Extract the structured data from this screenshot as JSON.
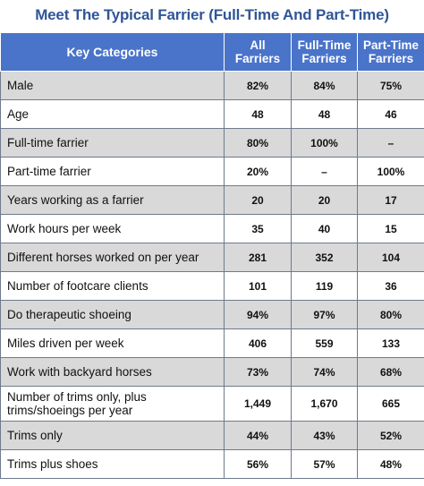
{
  "title": "Meet The Typical Farrier (Full-Time And Part-Time)",
  "chart_data": {
    "type": "table",
    "columns": [
      {
        "line1": "Key Categories",
        "line2": ""
      },
      {
        "line1": "All",
        "line2": "Farriers"
      },
      {
        "line1": "Full-Time",
        "line2": "Farriers"
      },
      {
        "line1": "Part-Time",
        "line2": "Farriers"
      }
    ],
    "rows": [
      {
        "label": "Male",
        "label2": "",
        "all": "82%",
        "full": "84%",
        "part": "75%"
      },
      {
        "label": "Age",
        "label2": "",
        "all": "48",
        "full": "48",
        "part": "46"
      },
      {
        "label": "Full-time farrier",
        "label2": "",
        "all": "80%",
        "full": "100%",
        "part": "–"
      },
      {
        "label": "Part-time farrier",
        "label2": "",
        "all": "20%",
        "full": "–",
        "part": "100%"
      },
      {
        "label": "Years working as a farrier",
        "label2": "",
        "all": "20",
        "full": "20",
        "part": "17"
      },
      {
        "label": "Work hours per week",
        "label2": "",
        "all": "35",
        "full": "40",
        "part": "15"
      },
      {
        "label": "Different horses worked on per year",
        "label2": "",
        "all": "281",
        "full": "352",
        "part": "104"
      },
      {
        "label": "Number of footcare clients",
        "label2": "",
        "all": "101",
        "full": "119",
        "part": "36"
      },
      {
        "label": "Do therapeutic shoeing",
        "label2": "",
        "all": "94%",
        "full": "97%",
        "part": "80%"
      },
      {
        "label": "Miles driven per week",
        "label2": "",
        "all": "406",
        "full": "559",
        "part": "133"
      },
      {
        "label": "Work with backyard horses",
        "label2": "",
        "all": "73%",
        "full": "74%",
        "part": "68%"
      },
      {
        "label": "Number of trims only, plus",
        "label2": "trims/shoeings per year",
        "all": "1,449",
        "full": "1,670",
        "part": "665"
      },
      {
        "label": "Trims only",
        "label2": "",
        "all": "44%",
        "full": "43%",
        "part": "52%"
      },
      {
        "label": "Trims plus shoes",
        "label2": "",
        "all": "56%",
        "full": "57%",
        "part": "48%"
      }
    ]
  }
}
